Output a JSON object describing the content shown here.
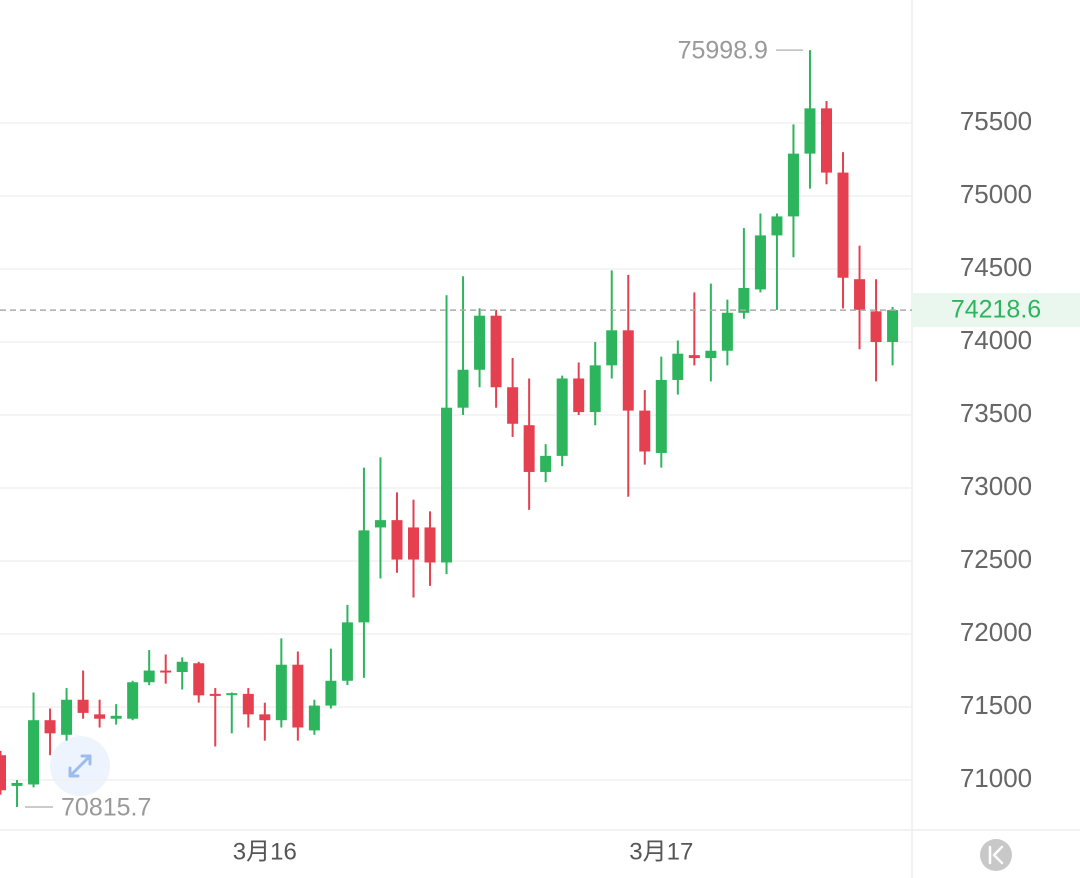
{
  "chart_data": {
    "type": "candlestick",
    "categories": [
      null,
      null,
      null,
      null,
      null,
      null,
      null,
      null,
      null,
      null,
      null,
      null,
      null,
      null,
      null,
      null,
      "3月16",
      null,
      null,
      null,
      null,
      null,
      null,
      null,
      null,
      null,
      null,
      null,
      null,
      null,
      null,
      null,
      null,
      null,
      null,
      null,
      null,
      null,
      null,
      null,
      "3月17",
      null,
      null,
      null,
      null,
      null,
      null,
      null,
      null,
      null,
      null,
      null,
      null,
      null,
      null
    ],
    "open": [
      71170,
      70960,
      70970,
      71410,
      71310,
      71550,
      71450,
      71420,
      71420,
      71670,
      71750,
      71740,
      71800,
      71590,
      71585,
      71590,
      71450,
      71410,
      71790,
      71340,
      71510,
      71680,
      72080,
      72730,
      72780,
      72730,
      72730,
      72490,
      73550,
      73810,
      74180,
      73690,
      73430,
      73110,
      73220,
      73750,
      73520,
      73840,
      74080,
      73530,
      73240,
      73740,
      73910,
      73890,
      73940,
      74200,
      74360,
      74730,
      74860,
      75290,
      75600,
      75160,
      74430,
      74210,
      74000
    ],
    "high": [
      71200,
      71000,
      71600,
      71490,
      71630,
      71750,
      71550,
      71520,
      71680,
      71890,
      71860,
      71840,
      71810,
      71630,
      71600,
      71630,
      71530,
      71970,
      71880,
      71550,
      71900,
      72200,
      73140,
      73210,
      72970,
      72920,
      72840,
      74320,
      74450,
      74230,
      74220,
      73890,
      73750,
      73300,
      73770,
      73860,
      74000,
      74490,
      74460,
      73670,
      73900,
      74010,
      74340,
      74400,
      74290,
      74780,
      74880,
      74880,
      75490,
      75998.9,
      75650,
      75300,
      74660,
      74430,
      74240
    ],
    "low": [
      70900,
      70815.7,
      70950,
      71170,
      71270,
      71420,
      71360,
      71380,
      71410,
      71650,
      71660,
      71620,
      71530,
      71230,
      71320,
      71360,
      71270,
      71360,
      71270,
      71310,
      71490,
      71650,
      71700,
      72380,
      72420,
      72250,
      72330,
      72410,
      73500,
      73690,
      73550,
      73350,
      72850,
      73040,
      73150,
      73500,
      73430,
      73750,
      72940,
      73160,
      73140,
      73640,
      73840,
      73730,
      73840,
      74160,
      74340,
      74220,
      74580,
      75050,
      75080,
      74230,
      73950,
      73730,
      73840
    ],
    "close": [
      70930,
      70980,
      71410,
      71320,
      71550,
      71460,
      71420,
      71440,
      71670,
      71750,
      71740,
      71810,
      71580,
      71580,
      71595,
      71450,
      71410,
      71790,
      71360,
      71510,
      71680,
      72080,
      72710,
      72780,
      72510,
      72510,
      72490,
      73550,
      73810,
      74180,
      73690,
      73440,
      73110,
      73220,
      73750,
      73520,
      73840,
      74080,
      73530,
      73250,
      73740,
      73920,
      73890,
      73940,
      74200,
      74370,
      74730,
      74860,
      75290,
      75600,
      75160,
      74440,
      74220,
      74000,
      74218.6
    ],
    "up_color": "#2db55d",
    "down_color": "#e5404f",
    "ylim": [
      70658,
      76342
    ],
    "yticks": [
      71000,
      71500,
      72000,
      72500,
      73000,
      73500,
      74000,
      74500,
      75000,
      75500
    ],
    "grid": true
  }
}
